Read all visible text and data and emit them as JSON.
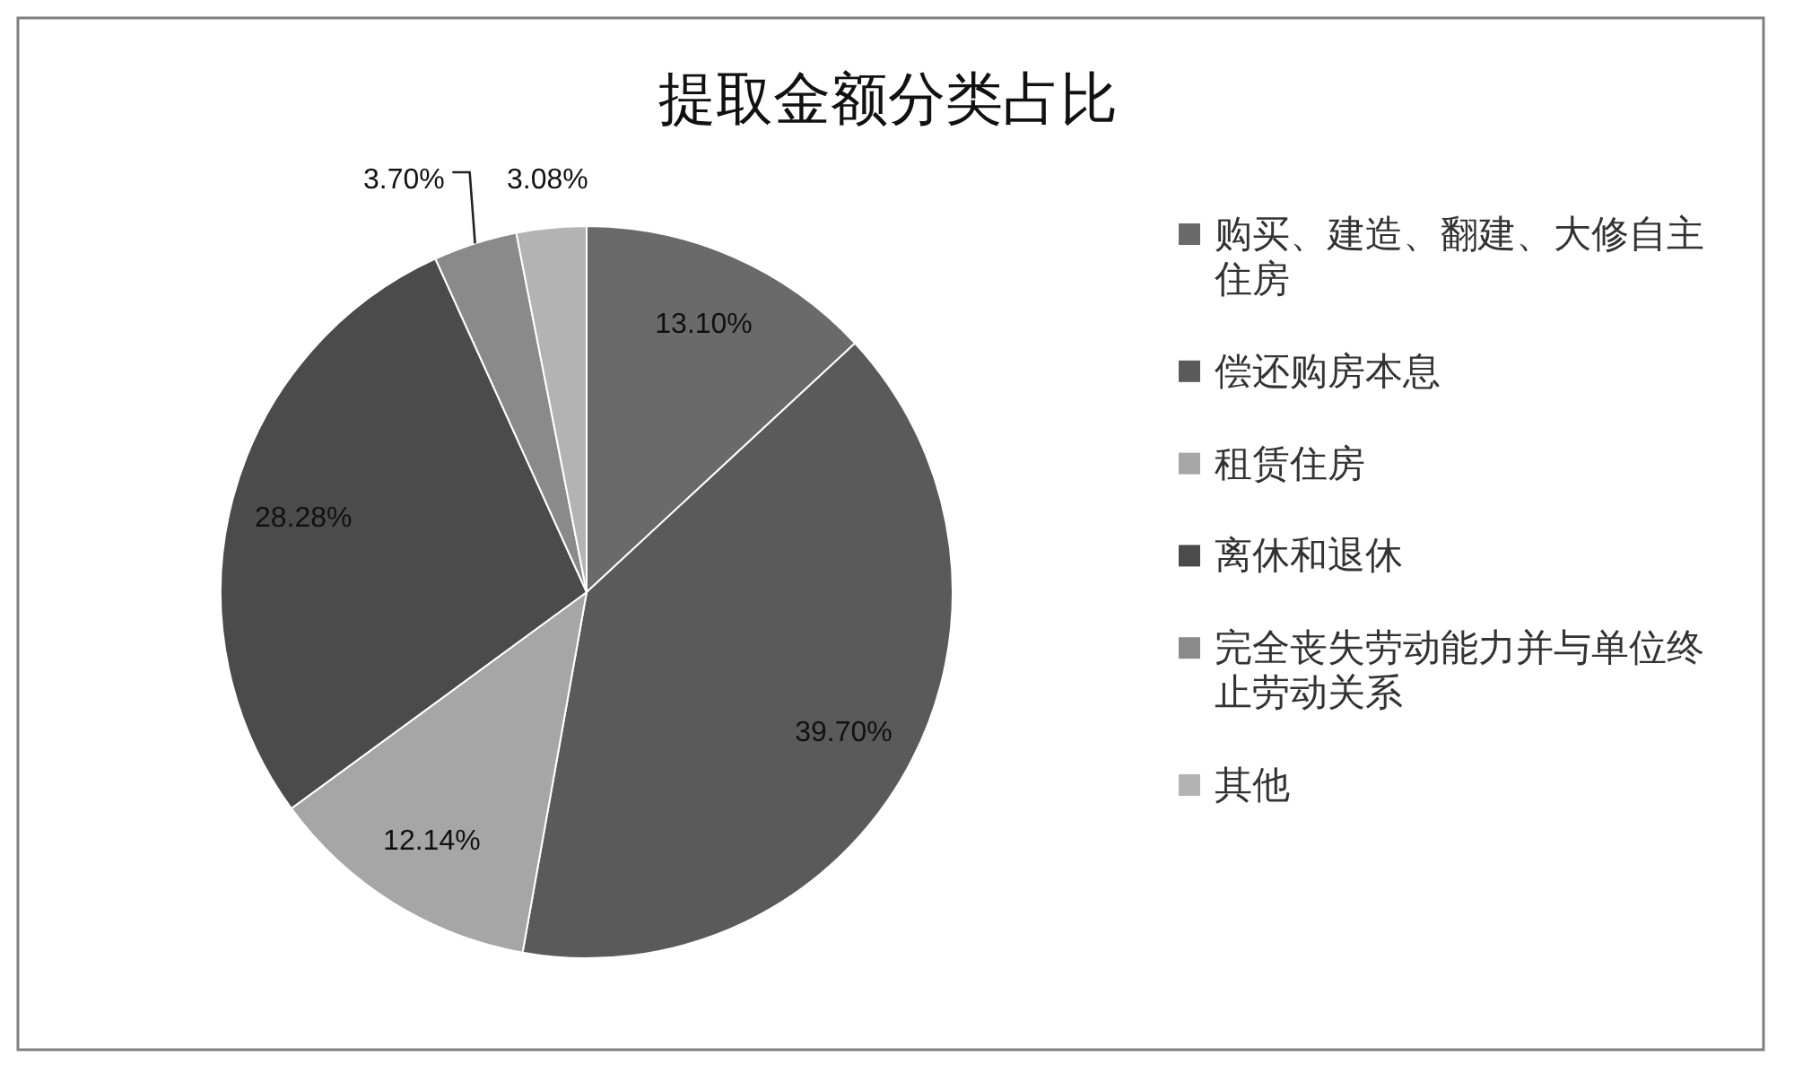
{
  "chart_data": {
    "type": "pie",
    "title": "提取金额分类占比",
    "categories": [
      "购买、建造、翻建、大修自主住房",
      "偿还购房本息",
      "租赁住房",
      "离休和退休",
      "完全丧失劳动能力并与单位终止劳动关系",
      "其他"
    ],
    "values": [
      13.1,
      39.7,
      12.14,
      28.28,
      3.7,
      3.08
    ],
    "colors": [
      "#6a6a6a",
      "#5a5a5a",
      "#a6a6a6",
      "#4b4b4b",
      "#8a8a8a",
      "#b3b3b3"
    ],
    "value_labels": [
      "13.10%",
      "39.70%",
      "12.14%",
      "28.28%",
      "3.70%",
      "3.08%"
    ],
    "legend": "right"
  }
}
